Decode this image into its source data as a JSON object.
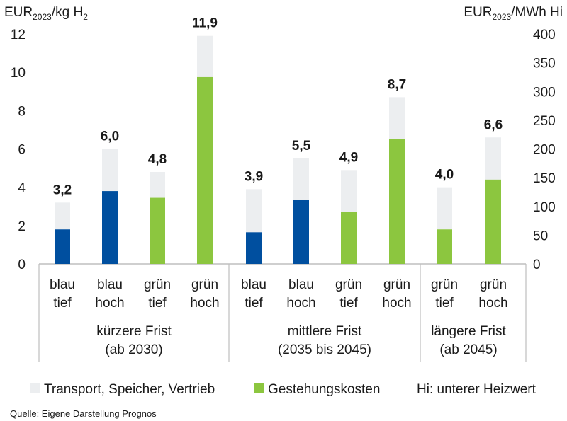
{
  "chart_data": {
    "type": "bar",
    "stacked": true,
    "y_left_unit": {
      "base": "EUR",
      "sub": "2023",
      "rest": "/kg H",
      "sub2": "2"
    },
    "y_right_unit": {
      "base": "EUR",
      "sub": "2023",
      "rest": "/MWh Hi"
    },
    "ylim_left": [
      0,
      12
    ],
    "yticks_left": [
      "0",
      "2",
      "4",
      "6",
      "8",
      "10",
      "12"
    ],
    "ylim_right": [
      0,
      400
    ],
    "yticks_right": [
      "0",
      "50",
      "100",
      "150",
      "200",
      "250",
      "300",
      "350",
      "400"
    ],
    "grid": false,
    "groups": [
      {
        "label_line1": "kürzere Frist",
        "label_line2": "(ab 2030)",
        "n": 4
      },
      {
        "label_line1": "mittlere Frist",
        "label_line2": "(2035 bis 2045)",
        "n": 4
      },
      {
        "label_line1": "längere Frist",
        "label_line2": "(ab 2045)",
        "n": 2
      }
    ],
    "bars": [
      {
        "line1": "blau",
        "line2": "tief",
        "color": "#004f9f",
        "production": 1.8,
        "total": 3.2,
        "total_label": "3,2"
      },
      {
        "line1": "blau",
        "line2": "hoch",
        "color": "#004f9f",
        "production": 3.8,
        "total": 6.0,
        "total_label": "6,0"
      },
      {
        "line1": "grün",
        "line2": "tief",
        "color": "#8cc63f",
        "production": 3.45,
        "total": 4.8,
        "total_label": "4,8"
      },
      {
        "line1": "grün",
        "line2": "hoch",
        "color": "#8cc63f",
        "production": 9.75,
        "total": 11.9,
        "total_label": "11,9"
      },
      {
        "line1": "blau",
        "line2": "tief",
        "color": "#004f9f",
        "production": 1.65,
        "total": 3.9,
        "total_label": "3,9"
      },
      {
        "line1": "blau",
        "line2": "hoch",
        "color": "#004f9f",
        "production": 3.35,
        "total": 5.5,
        "total_label": "5,5"
      },
      {
        "line1": "grün",
        "line2": "tief",
        "color": "#8cc63f",
        "production": 2.7,
        "total": 4.9,
        "total_label": "4,9"
      },
      {
        "line1": "grün",
        "line2": "hoch",
        "color": "#8cc63f",
        "production": 6.5,
        "total": 8.7,
        "total_label": "8,7"
      },
      {
        "line1": "grün",
        "line2": "tief",
        "color": "#8cc63f",
        "production": 1.8,
        "total": 4.0,
        "total_label": "4,0"
      },
      {
        "line1": "grün",
        "line2": "hoch",
        "color": "#8cc63f",
        "production": 4.4,
        "total": 6.6,
        "total_label": "6,6"
      }
    ],
    "series": [
      {
        "name": "Transport, Speicher, Vertrieb",
        "color": "#eceef0"
      },
      {
        "name": "Gestehungskosten",
        "color": "#8cc63f"
      }
    ],
    "legend_note": "Hi: unterer Heizwert"
  },
  "source": "Quelle: Eigene Darstellung Prognos"
}
